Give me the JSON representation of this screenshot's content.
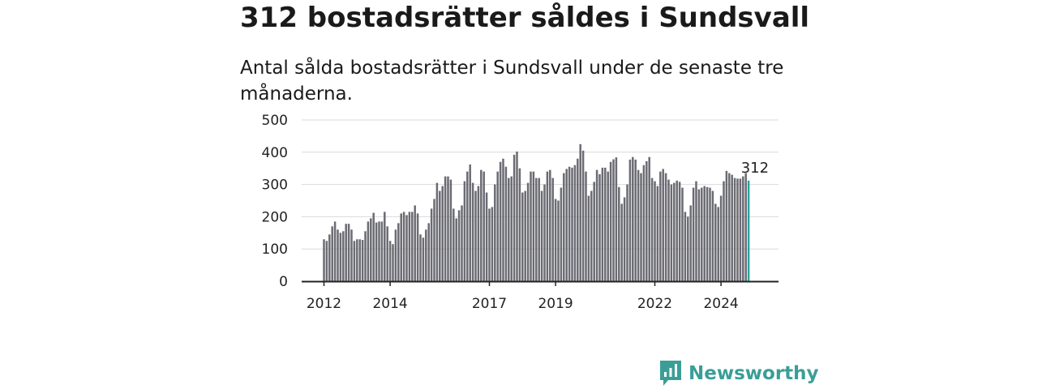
{
  "title": "312 bostadsrätter såldes i Sundsvall",
  "subtitle": "Antal sålda bostadsrätter i Sundsvall under de senaste tre månaderna.",
  "brand": {
    "name": "Newsworthy"
  },
  "colors": {
    "bar": "#6b6b73",
    "highlight": "#2aa39b",
    "grid": "#d9d9d9",
    "axis": "#222222",
    "brand": "#3a9e97"
  },
  "chart_data": {
    "type": "bar",
    "y_ticks": [
      0,
      100,
      200,
      300,
      400,
      500
    ],
    "ylim": [
      0,
      500
    ],
    "x_ticks": [
      {
        "label": "2012",
        "date": "2012-01"
      },
      {
        "label": "2014",
        "date": "2014-01"
      },
      {
        "label": "2017",
        "date": "2017-01"
      },
      {
        "label": "2019",
        "date": "2019-01"
      },
      {
        "label": "2022",
        "date": "2022-01"
      },
      {
        "label": "2024",
        "date": "2024-01"
      }
    ],
    "start": "2012-01",
    "end": "2025-01",
    "grid": true,
    "highlight": {
      "date": "2025-01",
      "value": 312,
      "label": "312"
    },
    "values": [
      130,
      125,
      145,
      170,
      185,
      160,
      150,
      155,
      178,
      178,
      160,
      125,
      130,
      130,
      128,
      155,
      185,
      195,
      212,
      182,
      185,
      185,
      215,
      170,
      125,
      115,
      160,
      180,
      210,
      215,
      205,
      215,
      215,
      235,
      210,
      145,
      135,
      160,
      180,
      225,
      255,
      305,
      280,
      295,
      325,
      325,
      315,
      225,
      195,
      220,
      235,
      310,
      340,
      362,
      305,
      280,
      295,
      345,
      340,
      275,
      225,
      230,
      300,
      340,
      370,
      380,
      355,
      320,
      325,
      392,
      402,
      350,
      275,
      280,
      305,
      340,
      340,
      320,
      320,
      280,
      300,
      340,
      345,
      320,
      255,
      250,
      290,
      335,
      348,
      355,
      352,
      360,
      380,
      425,
      405,
      340,
      265,
      280,
      308,
      345,
      332,
      352,
      352,
      340,
      370,
      378,
      384,
      292,
      240,
      260,
      300,
      377,
      385,
      377,
      345,
      335,
      360,
      372,
      385,
      320,
      310,
      295,
      340,
      348,
      335,
      315,
      300,
      305,
      312,
      308,
      290,
      215,
      200,
      235,
      290,
      310,
      285,
      290,
      295,
      292,
      290,
      280,
      240,
      230,
      265,
      310,
      342,
      335,
      330,
      320,
      318,
      318,
      325,
      335,
      312
    ]
  }
}
